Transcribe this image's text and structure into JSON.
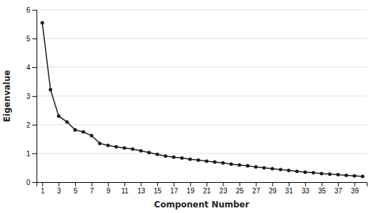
{
  "chart_data": {
    "type": "line",
    "x": [
      1,
      2,
      3,
      4,
      5,
      6,
      7,
      8,
      9,
      10,
      11,
      12,
      13,
      14,
      15,
      16,
      17,
      18,
      19,
      20,
      21,
      22,
      23,
      24,
      25,
      26,
      27,
      28,
      29,
      30,
      31,
      32,
      33,
      34,
      35,
      36,
      37,
      38,
      39,
      40
    ],
    "values": [
      5.55,
      3.22,
      2.3,
      2.1,
      1.82,
      1.75,
      1.62,
      1.35,
      1.28,
      1.23,
      1.19,
      1.15,
      1.09,
      1.03,
      0.97,
      0.91,
      0.87,
      0.84,
      0.8,
      0.77,
      0.73,
      0.7,
      0.67,
      0.63,
      0.6,
      0.57,
      0.53,
      0.5,
      0.47,
      0.44,
      0.41,
      0.38,
      0.35,
      0.33,
      0.3,
      0.28,
      0.26,
      0.24,
      0.22,
      0.2
    ],
    "xlabel": "Component Number",
    "ylabel": "Eigenvalue",
    "xlim": [
      0.3,
      40.5
    ],
    "ylim": [
      0,
      6
    ],
    "xticks": [
      1,
      3,
      5,
      7,
      9,
      11,
      13,
      15,
      17,
      19,
      21,
      23,
      25,
      27,
      29,
      31,
      33,
      35,
      37,
      39
    ],
    "yticks": [
      0,
      1,
      2,
      3,
      4,
      5,
      6
    ],
    "color": "#1a1a1a",
    "marker": "circle",
    "grid": "y"
  }
}
